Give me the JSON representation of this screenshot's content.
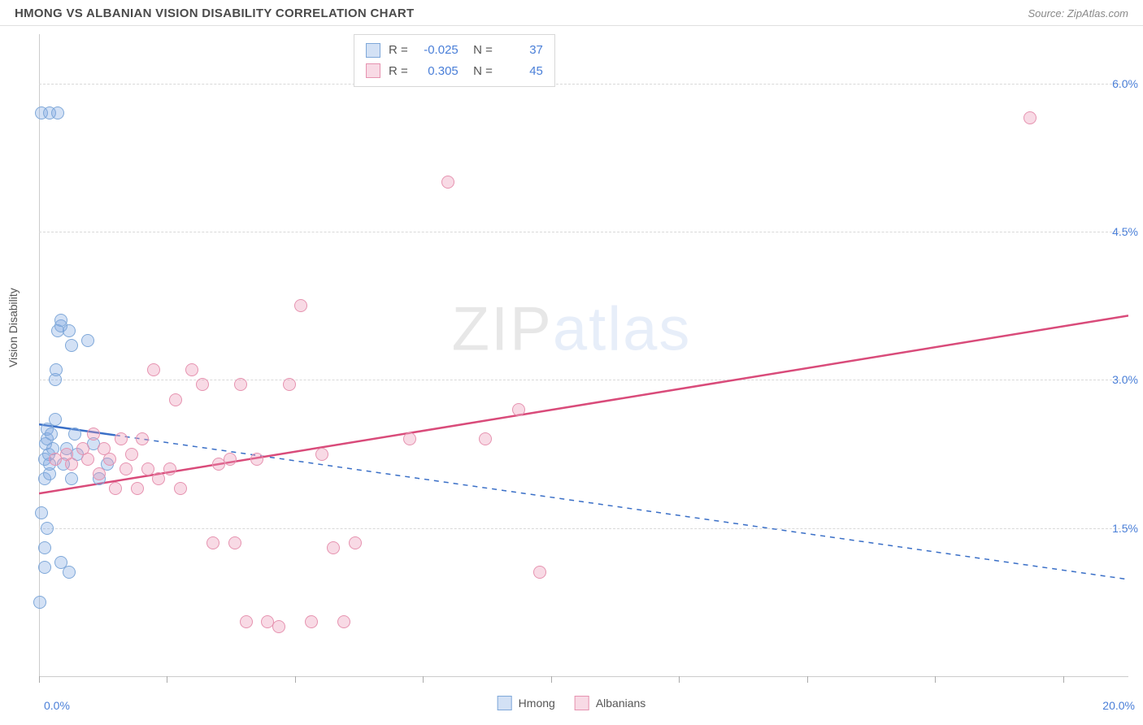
{
  "header": {
    "title": "HMONG VS ALBANIAN VISION DISABILITY CORRELATION CHART",
    "source": "Source: ZipAtlas.com"
  },
  "chart": {
    "type": "scatter",
    "ylabel": "Vision Disability",
    "xlim": [
      0,
      20
    ],
    "ylim": [
      0,
      6.5
    ],
    "ytick_values": [
      1.5,
      3.0,
      4.5,
      6.0
    ],
    "ytick_labels": [
      "1.5%",
      "3.0%",
      "4.5%",
      "6.0%"
    ],
    "xtick_marks": [
      0,
      2.35,
      4.7,
      7.05,
      9.4,
      11.75,
      14.1,
      16.45,
      18.8
    ],
    "xtick_label_left": "0.0%",
    "xtick_label_right": "20.0%",
    "background_color": "#ffffff",
    "grid_color": "#d8d8d8",
    "axis_color": "#cccccc",
    "tick_label_color": "#4a7fd8",
    "marker_size": 16,
    "series": [
      {
        "name": "Hmong",
        "fill": "rgba(130,170,225,0.35)",
        "stroke": "#7fa8d9",
        "R": "-0.025",
        "N": "37",
        "trend": {
          "x1": 0,
          "y1": 2.55,
          "x2": 20,
          "y2": 0.98,
          "color": "#3a6fc7",
          "width": 2.5,
          "dash": "6 6",
          "solid_until_x": 1.4
        },
        "points": [
          [
            0.02,
            0.75
          ],
          [
            0.05,
            1.65
          ],
          [
            0.1,
            1.1
          ],
          [
            0.1,
            1.3
          ],
          [
            0.1,
            2.0
          ],
          [
            0.1,
            2.2
          ],
          [
            0.12,
            2.35
          ],
          [
            0.15,
            2.4
          ],
          [
            0.15,
            2.5
          ],
          [
            0.18,
            2.25
          ],
          [
            0.2,
            2.05
          ],
          [
            0.2,
            2.15
          ],
          [
            0.22,
            2.45
          ],
          [
            0.25,
            2.3
          ],
          [
            0.3,
            2.6
          ],
          [
            0.3,
            3.0
          ],
          [
            0.32,
            3.1
          ],
          [
            0.35,
            3.5
          ],
          [
            0.4,
            3.55
          ],
          [
            0.4,
            3.6
          ],
          [
            0.05,
            5.7
          ],
          [
            0.2,
            5.7
          ],
          [
            0.35,
            5.7
          ],
          [
            0.45,
            2.15
          ],
          [
            0.5,
            2.3
          ],
          [
            0.55,
            3.5
          ],
          [
            0.6,
            3.35
          ],
          [
            0.6,
            2.0
          ],
          [
            0.65,
            2.45
          ],
          [
            0.7,
            2.25
          ],
          [
            0.9,
            3.4
          ],
          [
            1.0,
            2.35
          ],
          [
            1.1,
            2.0
          ],
          [
            1.25,
            2.15
          ],
          [
            0.15,
            1.5
          ],
          [
            0.4,
            1.15
          ],
          [
            0.55,
            1.05
          ]
        ]
      },
      {
        "name": "Albanians",
        "fill": "rgba(235,150,180,0.35)",
        "stroke": "#e693b0",
        "R": "0.305",
        "N": "45",
        "trend": {
          "x1": 0,
          "y1": 1.85,
          "x2": 20,
          "y2": 3.65,
          "color": "#d94b7a",
          "width": 2.5,
          "dash": null
        },
        "points": [
          [
            0.3,
            2.2
          ],
          [
            0.5,
            2.25
          ],
          [
            0.6,
            2.15
          ],
          [
            0.8,
            2.3
          ],
          [
            0.9,
            2.2
          ],
          [
            1.0,
            2.45
          ],
          [
            1.1,
            2.05
          ],
          [
            1.2,
            2.3
          ],
          [
            1.3,
            2.2
          ],
          [
            1.4,
            1.9
          ],
          [
            1.5,
            2.4
          ],
          [
            1.6,
            2.1
          ],
          [
            1.7,
            2.25
          ],
          [
            1.8,
            1.9
          ],
          [
            1.9,
            2.4
          ],
          [
            2.0,
            2.1
          ],
          [
            2.1,
            3.1
          ],
          [
            2.2,
            2.0
          ],
          [
            2.4,
            2.1
          ],
          [
            2.5,
            2.8
          ],
          [
            2.6,
            1.9
          ],
          [
            2.8,
            3.1
          ],
          [
            3.0,
            2.95
          ],
          [
            3.2,
            1.35
          ],
          [
            3.3,
            2.15
          ],
          [
            3.5,
            2.2
          ],
          [
            3.6,
            1.35
          ],
          [
            3.7,
            2.95
          ],
          [
            3.8,
            0.55
          ],
          [
            4.0,
            2.2
          ],
          [
            4.2,
            0.55
          ],
          [
            4.4,
            0.5
          ],
          [
            4.6,
            2.95
          ],
          [
            4.8,
            3.75
          ],
          [
            5.0,
            0.55
          ],
          [
            5.2,
            2.25
          ],
          [
            5.4,
            1.3
          ],
          [
            5.6,
            0.55
          ],
          [
            5.8,
            1.35
          ],
          [
            6.8,
            2.4
          ],
          [
            7.5,
            5.0
          ],
          [
            8.2,
            2.4
          ],
          [
            8.8,
            2.7
          ],
          [
            9.2,
            1.05
          ],
          [
            18.2,
            5.65
          ]
        ]
      }
    ],
    "watermark": {
      "zip": "ZIP",
      "atlas": "atlas"
    },
    "legend_bottom": [
      "Hmong",
      "Albanians"
    ]
  }
}
